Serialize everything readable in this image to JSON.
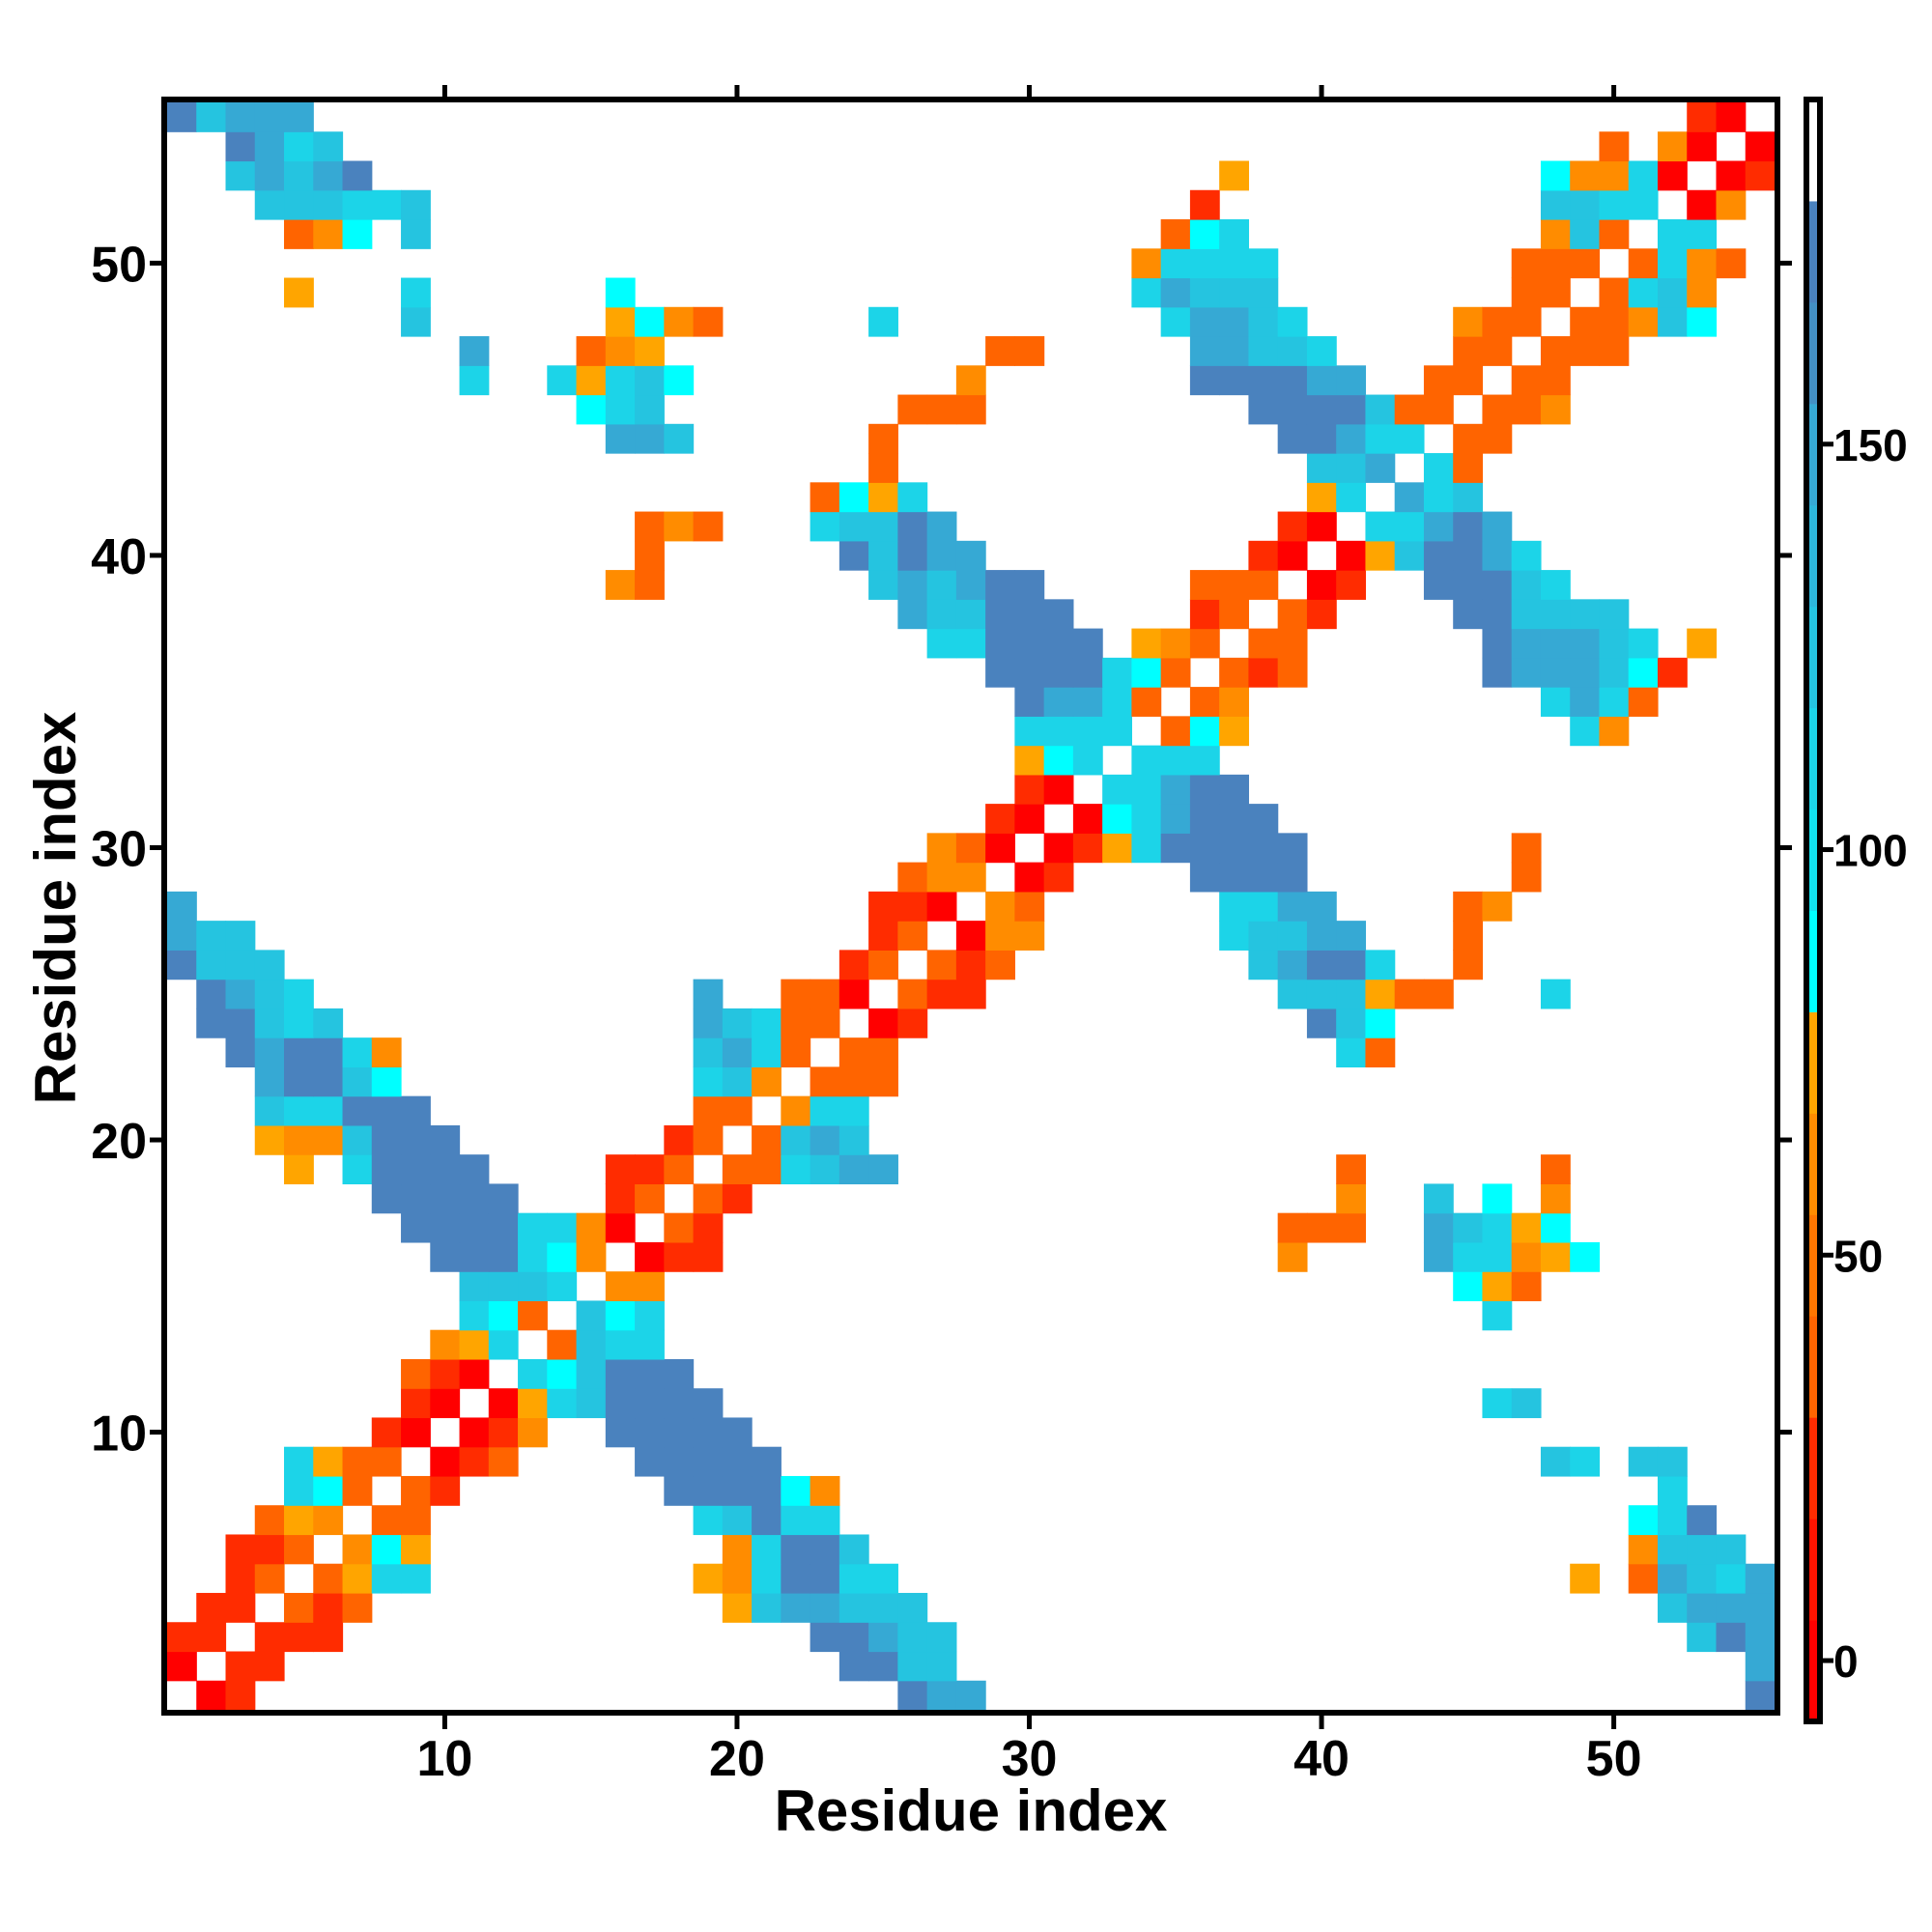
{
  "chart_data": {
    "type": "heatmap",
    "title": "",
    "xlabel": "Residue index",
    "ylabel": "Residue index",
    "x_range": [
      1,
      55
    ],
    "y_range": [
      1,
      55
    ],
    "xticks": [
      10,
      20,
      30,
      40,
      50
    ],
    "yticks": [
      10,
      20,
      30,
      40,
      50
    ],
    "grid": false,
    "empty_cell_color": "#ffffff",
    "value_codes": {
      "R": 3,
      "r": 18,
      "O": 38,
      "o": 55,
      "y": 70,
      "C": 86,
      "c": 105,
      "k": 122,
      "b": 145,
      "B": 168
    },
    "colorbar": {
      "position": "right",
      "range": [
        -7.5,
        192.5
      ],
      "ticks": [
        0,
        50,
        100,
        150
      ],
      "bins": [
        {
          "from": -7.5,
          "to": 5,
          "color": "#ff0000"
        },
        {
          "from": 5,
          "to": 17.5,
          "color": "#ff1400"
        },
        {
          "from": 17.5,
          "to": 30,
          "color": "#ff2c00"
        },
        {
          "from": 30,
          "to": 42.5,
          "color": "#ff6400"
        },
        {
          "from": 42.5,
          "to": 55,
          "color": "#ff7600"
        },
        {
          "from": 55,
          "to": 67.5,
          "color": "#ff8c00"
        },
        {
          "from": 67.5,
          "to": 80,
          "color": "#ffa500"
        },
        {
          "from": 80,
          "to": 92.5,
          "color": "#00ffff"
        },
        {
          "from": 92.5,
          "to": 105,
          "color": "#12e2ef"
        },
        {
          "from": 105,
          "to": 117.5,
          "color": "#1cd4e8"
        },
        {
          "from": 117.5,
          "to": 130,
          "color": "#25c4e0"
        },
        {
          "from": 130,
          "to": 142.5,
          "color": "#2db6da"
        },
        {
          "from": 142.5,
          "to": 155,
          "color": "#36a9d4"
        },
        {
          "from": 155,
          "to": 167.5,
          "color": "#4390c4"
        },
        {
          "from": 167.5,
          "to": 180,
          "color": "#4a82be"
        },
        {
          "from": 180,
          "to": 192.5,
          "color": "#ffffff"
        }
      ]
    },
    "rows": {
      "55": "1B 2k 3b 4b 5b 53r 54R",
      "54": "3B 4b 5c 6k 50O 52o 53R 55R",
      "53": "3k 4b 5k 6b 7B 37y 48C 49o 50o 51c 52R 54R 55r",
      "52": "4k 5k 6k 7c 8c 9k 36r 48k 49k 50c 51c 53R 54o",
      "51": "5O 6o 7C 9k 35O 36C 37c 48o 49k 50O 52c 53c",
      "50": "34o 35c 36c 37c 38c 47O 48O 49O 51O 52c 53o 54O",
      "49": "5y 9c 16C 34c 35b 36k 37k 38k 47O 48O 50O 51c 52k 53o",
      "48": "9k 16y 17C 18o 19O 25c 35c 36b 37b 38k 39c 45o 46O 47O 49O 50O 51o 52k 53C",
      "47": "11b 15O 16o 17y 29O 30O 36b 37b 38k 39k 40c 45O 46O 48O 49O 50O",
      "46": "11c 14c 15y 16c 17k 18C 28o 36B 37B 38B 39B 40b 41b 44O 45O 47O 48O",
      "45": "15C 16c 17k 26O 27O 28O 38B 39B 40B 41B 42k 43O 44O 46O 47O 48o",
      "44": "16b 17b 18k 25O 39B 40B 41b 42c 43c 45O 46O",
      "43": "25O 40k 41k 42b 44c 45O",
      "42": "23O 24C 25y 26c 40y 41c 43b 44c 45k",
      "41": "17O 18o 19O 23c 24k 25k 26B 27b 39r 40R 42c 43c 44b 45B 46b",
      "40": "17O 24B 25k 26B 27b 28b 38r 39R 41R 42y 43k 44B 45B 46b 47c",
      "39": "16o 17O 25k 26b 27k 28b 29B 30B 36O 37O 38O 40R 41r 44B 45B 46B 47k 48c",
      "38": "26b 27k 28k 29B 30B 31B 36r 37O 39O 40r 45B 46B 47k 48k 49k 50k",
      "37": "27c 28c 29B 30B 31B 32B 34y 35o 36O 38O 39O 46B 47b 48b 49b 50k 51c 53y",
      "36": "29B 30B 31B 32B 33c 34C 35O 37O 38r 39O 46B 47b 48b 49b 50k 51C 52r",
      "35": "30B 31b 32b 33c 34O 36O 37o 48c 49b 50c 51O",
      "34": "30c 31c 32c 33c 35O 36C 37y 49c 50o",
      "33": "30y 31C 32c 34c 35c 36c",
      "32": "30r 31R 33c 34c 35b 36B 37B",
      "31": "29r 30R 32R 33C 34c 35b 36B 37B 38B",
      "30": "27o 28O 29R 31R 32r 33y 34c 35B 36B 37B 38B 39B 47O",
      "29": "26O 27o 28o 30R 31r 36B 37B 38B 39B 47O",
      "28": "1b 25r 26r 27R 29o 30O 37c 38c 39b 40b 45O 46o",
      "27": "1b 2k 3k 25r 26O 28R 29o 30o 37c 38k 39k 40b 41b 45O",
      "26": "1B 2k 3k 4k 24r 25O 27O 28r 29O 38k 39b 40B 41B 42c 45O",
      "25": "2B 3b 4k 5c 19b 22O 23O 24R 26O 27r 28r 39k 40k 41k 42y 43O 44O 48c",
      "24": "2B 3B 4k 5c 6k 19b 20k 21c 22O 23O 25R 26r 40B 41k 42C",
      "23": "3B 4b 5B 6B 7c 8o 19k 20b 21c 22O 24O 25O 41c 42O",
      "22": "4b 5B 6B 7k 8C 19c 20k 21o 23O 24O 25O",
      "21": "4k 5c 6c 7B 8B 9B 19O 20O 22o 23c 24c",
      "20": "4y 5o 6o 7k 8B 9B 10B 18r 19O 21O 22k 23b 24k",
      "19": "5y 7c 8B 9B 10B 11B 16r 17r 18O 20O 21O 22c 23k 24b 25b 41O 48O",
      "18": "8B 9B 10B 11B 12B 16r 17O 19O 20r 41o 44k 46C 48o",
      "17": "9B 10B 11B 12B 13c 14c 15o 16R 18O 19r 39O 40O 41O 44b 45k 46c 47y 48C",
      "16": "10B 11B 12B 13c 14C 15o 17R 18r 19r 39o 44b 45c 46c 47o 48y 49C",
      "15": "11k 12k 13k 14c 16o 17o 45C 46y 47O",
      "14": "11c 12C 13O 15k 16C 17c 46c",
      "13": "10o 11y 12c 14O 15k 16c 17c",
      "12": "9O 10r 11R 13c 14C 15k 16B 17B 18B",
      "11": "9r 10R 12R 13y 14c 15k 16B 17B 18B 19B 46c 47k",
      "10": "8r 9R 11R 12r 13o 16B 17B 18B 19B 20B",
      "9": "5c 6y 7O 8O 10R 11r 12O 17B 18B 19B 20B 21B 48k 49c 51k 52k",
      "8": "5c 6C 7O 9O 10r 18B 19B 20B 21B 22C 23o 52c",
      "7": "4O 5y 6o 8O 9O 19c 20k 21B 22c 23c 51C 52c 53B",
      "6": "3r 4r 5O 7o 8C 9y 20o 21c 22B 23B 24k 51o 52k 53k 54k",
      "5": "3r 4O 6O 7y 8c 9c 19y 20o 21c 22B 23B 24c 25c 49y 51O 52b 53k 54c 55b",
      "4": "2r 3r 5O 6r 7O 20y 21k 22b 23b 24k 25k 26k 52k 53b 54b 55b",
      "3": "1r 2r 4r 5r 6r 23B 24B 25b 26k 27k 53k 54B 55b",
      "2": "1R 3r 4r 24B 25B 26k 27k 55b",
      "1": "2R 3r 26B 27b 28b 55B"
    }
  }
}
